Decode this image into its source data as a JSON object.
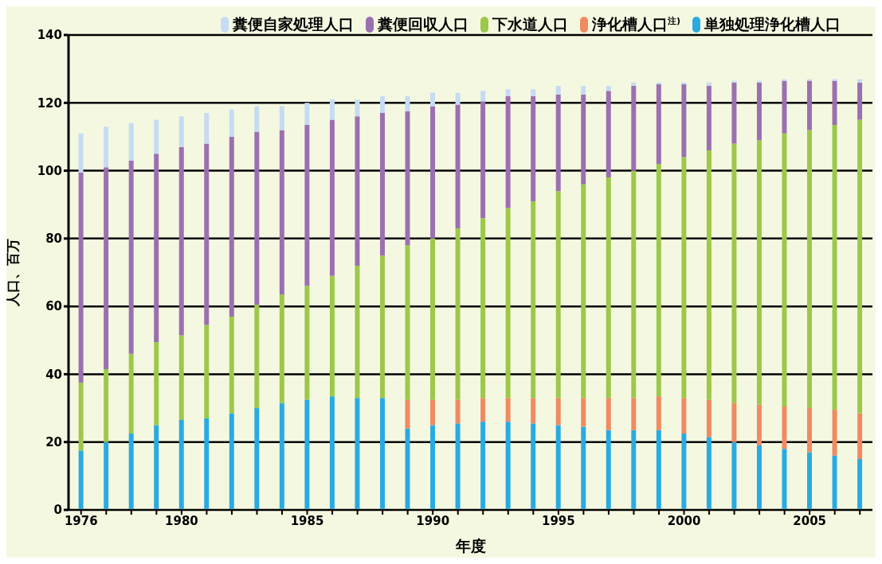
{
  "chart_data": {
    "type": "bar",
    "stacked": true,
    "xlabel": "年度",
    "ylabel": "人口、百万",
    "categories": [
      "1976",
      null,
      null,
      null,
      "1980",
      null,
      null,
      null,
      null,
      "1985",
      null,
      null,
      null,
      null,
      "1990",
      null,
      null,
      null,
      null,
      "1995",
      null,
      null,
      null,
      null,
      "2000",
      null,
      null,
      null,
      null,
      "2005",
      null,
      null
    ],
    "series": [
      {
        "name": "単独処理浄化槽人口",
        "color": "#29abe2",
        "values": [
          17.5,
          20,
          22.5,
          25,
          26.5,
          27,
          28.5,
          30,
          31.5,
          32.5,
          33.5,
          33,
          33,
          24,
          25,
          25.5,
          26,
          26,
          25.5,
          25,
          24.5,
          23.5,
          23.5,
          23.5,
          22.5,
          21.5,
          20,
          19,
          18,
          17,
          16,
          15
        ]
      },
      {
        "name": "浄化槽人口$^{注)}$",
        "color": "#f08a62",
        "values": [
          null,
          null,
          null,
          null,
          null,
          null,
          null,
          null,
          null,
          null,
          null,
          null,
          null,
          8.5,
          7.5,
          7,
          7,
          7,
          7.5,
          8,
          8.5,
          9.5,
          9.5,
          10,
          10.5,
          11,
          11.5,
          12,
          12.5,
          13,
          13.5,
          13.5
        ]
      },
      {
        "name": "下水道人口",
        "color": "#9dc84a",
        "values": [
          20,
          21.5,
          23.5,
          24.5,
          25,
          27.5,
          28.5,
          30.5,
          32,
          33.5,
          35.5,
          39,
          42,
          45.5,
          47.5,
          50.5,
          53,
          56,
          58,
          61,
          63,
          65,
          67,
          68.5,
          71,
          73.5,
          76.5,
          78,
          80.5,
          82,
          84,
          86.5
        ]
      },
      {
        "name": "糞便回収人口",
        "color": "#9b70b0",
        "values": [
          62,
          59.5,
          57,
          55.5,
          55.5,
          53.5,
          53,
          51,
          48.5,
          47.5,
          46,
          44,
          42,
          39.5,
          39,
          36.5,
          34.5,
          33,
          31,
          28.5,
          26.5,
          25.5,
          25,
          23.5,
          21.5,
          19,
          18,
          17,
          15.5,
          14.5,
          13,
          11
        ]
      },
      {
        "name": "糞便自家処理人口",
        "color": "#c5dcf2",
        "values": [
          11.5,
          12,
          11,
          10,
          9,
          9,
          8,
          7.5,
          7,
          6.5,
          6,
          5,
          5,
          4.5,
          4,
          3.5,
          3,
          2,
          2,
          2.5,
          2.5,
          1.5,
          1,
          0.5,
          0.5,
          1,
          0.5,
          0.5,
          0.5,
          0.5,
          0.5,
          1
        ]
      }
    ],
    "ylim": [
      0,
      140
    ],
    "yticks": [
      0,
      20,
      40,
      60,
      80,
      100,
      120,
      140
    ],
    "grid": "y",
    "legend": "top"
  }
}
